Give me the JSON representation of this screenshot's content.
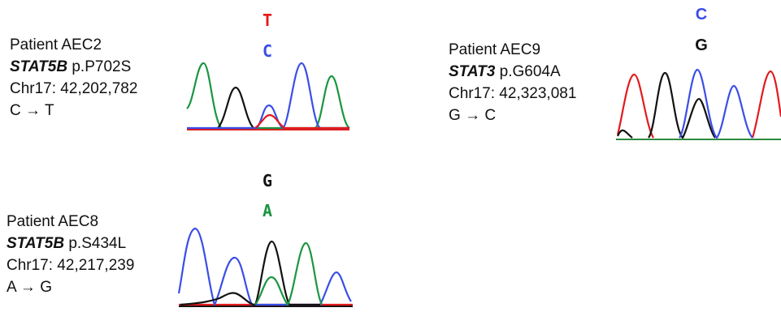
{
  "colors": {
    "A": "#1a9641",
    "C": "#3a4ee6",
    "G": "#111111",
    "T": "#e31a1c",
    "baseline_green": "#2d8a3e",
    "baseline_red": "#e31a1c"
  },
  "panels": [
    {
      "id": "aec2",
      "patient": "Patient AEC2",
      "gene": "STAT5B",
      "protein_change": " p.P702S",
      "position": "Chr17: 42,202,782",
      "nucleotide_change": {
        "from": "C",
        "to": "T"
      },
      "top_base": {
        "letter": "T",
        "color": "#e31a1c"
      },
      "bottom_base": {
        "letter": "C",
        "color": "#3a4ee6"
      }
    },
    {
      "id": "aec9",
      "patient": "Patient AEC9",
      "gene": "STAT3",
      "protein_change": " p.G604A",
      "position": "Chr17: 42,323,081",
      "nucleotide_change": {
        "from": "G",
        "to": "C"
      },
      "top_base": {
        "letter": "C",
        "color": "#3a4ee6"
      },
      "bottom_base": {
        "letter": "G",
        "color": "#111111"
      }
    },
    {
      "id": "aec8",
      "patient": "Patient AEC8",
      "gene": "STAT5B",
      "protein_change": " p.S434L",
      "position": "Chr17: 42,217,239",
      "nucleotide_change": {
        "from": "A",
        "to": "G"
      },
      "top_base": {
        "letter": "G",
        "color": "#111111"
      },
      "bottom_base": {
        "letter": "A",
        "color": "#1a9641"
      }
    }
  ],
  "arrow_symbol": "→"
}
